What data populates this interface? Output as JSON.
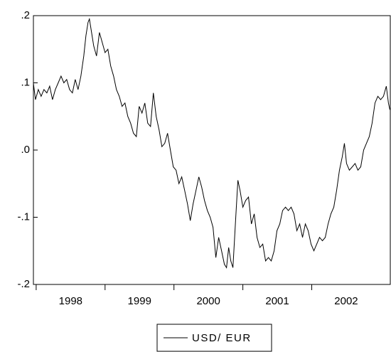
{
  "chart_data": {
    "type": "line",
    "xlim": [
      1997.96,
      2003.14
    ],
    "xticks": [
      1998,
      1999,
      2000,
      2001,
      2002
    ],
    "ylim": [
      -0.2,
      0.2
    ],
    "yticks": [
      {
        "value": 0.2,
        "label": ".2"
      },
      {
        "value": 0.1,
        "label": ".1"
      },
      {
        "value": 0.0,
        "label": ".0"
      },
      {
        "value": -0.1,
        "label": "-.1"
      },
      {
        "value": -0.2,
        "label": "-.2"
      }
    ],
    "legend": "bottom",
    "series": [
      {
        "name": "USD/ EUR",
        "color": "#000000",
        "x": [
          1997.959,
          1997.99,
          1998.031,
          1998.072,
          1998.113,
          1998.155,
          1998.196,
          1998.237,
          1998.278,
          1998.32,
          1998.361,
          1998.402,
          1998.443,
          1998.485,
          1998.526,
          1998.567,
          1998.608,
          1998.649,
          1998.691,
          1998.722,
          1998.753,
          1998.773,
          1998.804,
          1998.835,
          1998.876,
          1998.918,
          1998.959,
          1999.0,
          1999.041,
          1999.082,
          1999.124,
          1999.165,
          1999.206,
          1999.247,
          1999.289,
          1999.33,
          1999.371,
          1999.412,
          1999.454,
          1999.495,
          1999.536,
          1999.577,
          1999.619,
          1999.66,
          1999.701,
          1999.742,
          1999.784,
          1999.825,
          1999.866,
          1999.907,
          1999.948,
          1999.99,
          2000.031,
          2000.072,
          2000.113,
          2000.155,
          2000.196,
          2000.237,
          2000.278,
          2000.32,
          2000.361,
          2000.402,
          2000.443,
          2000.485,
          2000.526,
          2000.567,
          2000.608,
          2000.649,
          2000.691,
          2000.732,
          2000.763,
          2000.794,
          2000.825,
          2000.856,
          2000.897,
          2000.928,
          2000.959,
          2001.0,
          2001.041,
          2001.082,
          2001.124,
          2001.165,
          2001.206,
          2001.247,
          2001.289,
          2001.33,
          2001.371,
          2001.412,
          2001.454,
          2001.495,
          2001.536,
          2001.577,
          2001.619,
          2001.66,
          2001.701,
          2001.742,
          2001.784,
          2001.825,
          2001.866,
          2001.907,
          2001.948,
          2001.99,
          2002.031,
          2002.072,
          2002.113,
          2002.155,
          2002.196,
          2002.237,
          2002.278,
          2002.32,
          2002.361,
          2002.402,
          2002.443,
          2002.474,
          2002.505,
          2002.546,
          2002.588,
          2002.629,
          2002.67,
          2002.711,
          2002.753,
          2002.794,
          2002.835,
          2002.876,
          2002.918,
          2002.959,
          2003.0,
          2003.041,
          2003.082,
          2003.113,
          2003.134
        ],
        "values": [
          0.1,
          0.075,
          0.09,
          0.08,
          0.09,
          0.085,
          0.095,
          0.075,
          0.09,
          0.1,
          0.11,
          0.1,
          0.105,
          0.09,
          0.085,
          0.105,
          0.09,
          0.11,
          0.14,
          0.17,
          0.19,
          0.195,
          0.175,
          0.155,
          0.14,
          0.175,
          0.16,
          0.145,
          0.15,
          0.125,
          0.11,
          0.09,
          0.08,
          0.065,
          0.07,
          0.05,
          0.04,
          0.025,
          0.02,
          0.065,
          0.055,
          0.07,
          0.04,
          0.035,
          0.085,
          0.05,
          0.03,
          0.005,
          0.01,
          0.025,
          0.0,
          -0.025,
          -0.03,
          -0.05,
          -0.04,
          -0.06,
          -0.08,
          -0.105,
          -0.08,
          -0.06,
          -0.04,
          -0.055,
          -0.075,
          -0.09,
          -0.1,
          -0.115,
          -0.16,
          -0.13,
          -0.15,
          -0.17,
          -0.175,
          -0.145,
          -0.165,
          -0.175,
          -0.1,
          -0.045,
          -0.06,
          -0.085,
          -0.075,
          -0.07,
          -0.11,
          -0.095,
          -0.13,
          -0.145,
          -0.14,
          -0.165,
          -0.16,
          -0.165,
          -0.15,
          -0.12,
          -0.11,
          -0.09,
          -0.085,
          -0.09,
          -0.085,
          -0.095,
          -0.12,
          -0.11,
          -0.13,
          -0.11,
          -0.12,
          -0.14,
          -0.15,
          -0.14,
          -0.13,
          -0.135,
          -0.13,
          -0.11,
          -0.095,
          -0.085,
          -0.06,
          -0.03,
          -0.01,
          0.01,
          -0.02,
          -0.03,
          -0.025,
          -0.02,
          -0.03,
          -0.025,
          0.0,
          0.01,
          0.02,
          0.04,
          0.07,
          0.08,
          0.075,
          0.08,
          0.095,
          0.07,
          0.06
        ]
      }
    ]
  }
}
